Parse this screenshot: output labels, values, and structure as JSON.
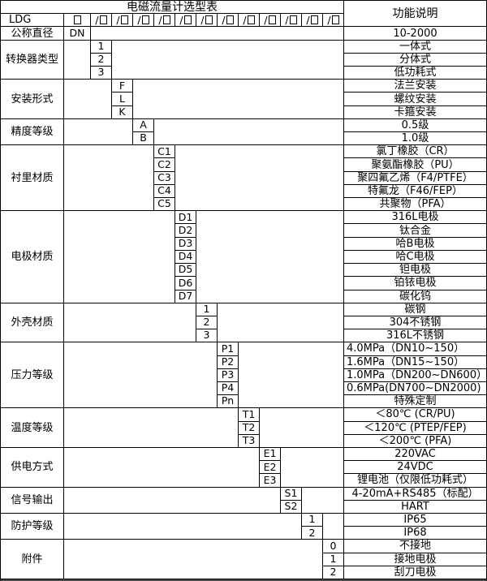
{
  "colors": {
    "border": "#000000",
    "background": "#ffffff",
    "text": "#000000"
  },
  "table": {
    "title": "电磁流量计选型表",
    "function_header": "功能说明",
    "model_row": {
      "prefix": "LDG",
      "segments": [
        "□",
        "/□",
        "/□",
        "/□",
        "/□",
        "/□",
        "/□",
        "/□",
        "/□",
        "/□",
        "/□",
        "/□",
        "/□"
      ]
    },
    "sections": [
      {
        "label": "公称直径",
        "col": 0,
        "rows": [
          {
            "code": "DN",
            "desc": "10-2000"
          }
        ]
      },
      {
        "label": "转换器类型",
        "col": 1,
        "rows": [
          {
            "code": "1",
            "desc": "一体式"
          },
          {
            "code": "2",
            "desc": "分体式"
          },
          {
            "code": "3",
            "desc": "低功耗式"
          }
        ]
      },
      {
        "label": "安装形式",
        "col": 2,
        "rows": [
          {
            "code": "F",
            "desc": "法兰安装"
          },
          {
            "code": "L",
            "desc": "螺纹安装"
          },
          {
            "code": "K",
            "desc": "卡箍安装"
          }
        ]
      },
      {
        "label": "精度等级",
        "col": 3,
        "rows": [
          {
            "code": "A",
            "desc": "0.5级"
          },
          {
            "code": "B",
            "desc": "1.0级"
          }
        ]
      },
      {
        "label": "衬里材质",
        "col": 4,
        "rows": [
          {
            "code": "C1",
            "desc": "氯丁橡胶（CR）"
          },
          {
            "code": "C2",
            "desc": "聚氨酯橡胶（PU）"
          },
          {
            "code": "C3",
            "desc": "聚四氟乙烯（F4/PTFE）"
          },
          {
            "code": "C4",
            "desc": "特氟龙（F46/FEP）"
          },
          {
            "code": "C5",
            "desc": "共聚物（PFA）"
          }
        ]
      },
      {
        "label": "电极材质",
        "col": 5,
        "rows": [
          {
            "code": "D1",
            "desc": "316L电极"
          },
          {
            "code": "D2",
            "desc": "钛合金"
          },
          {
            "code": "D3",
            "desc": "哈B电极"
          },
          {
            "code": "D4",
            "desc": "哈C电极"
          },
          {
            "code": "D5",
            "desc": "钽电极"
          },
          {
            "code": "D6",
            "desc": "铂铱电极"
          },
          {
            "code": "D7",
            "desc": "碳化钨"
          }
        ]
      },
      {
        "label": "外壳材质",
        "col": 6,
        "rows": [
          {
            "code": "1",
            "desc": "碳钢"
          },
          {
            "code": "2",
            "desc": "304不锈钢"
          },
          {
            "code": "3",
            "desc": "316L不锈钢"
          }
        ]
      },
      {
        "label": "压力等级",
        "col": 7,
        "rows": [
          {
            "code": "P1",
            "desc": "4.0MPa（DN10~150）",
            "align": "left"
          },
          {
            "code": "P2",
            "desc": "1.6MPa（DN15~150）",
            "align": "left"
          },
          {
            "code": "P3",
            "desc": "1.0MPa（DN200~DN600）",
            "align": "left"
          },
          {
            "code": "P4",
            "desc": "0.6MPa(DN700~DN2000)",
            "align": "left"
          },
          {
            "code": "Pn",
            "desc": "特殊定制"
          }
        ]
      },
      {
        "label": "温度等级",
        "col": 8,
        "rows": [
          {
            "code": "T1",
            "desc": "＜80℃ (CR/PU)"
          },
          {
            "code": "T2",
            "desc": "＜120℃ (PTEP/FEP)"
          },
          {
            "code": "T3",
            "desc": "＜200℃ (PFA)"
          }
        ]
      },
      {
        "label": "供电方式",
        "col": 9,
        "rows": [
          {
            "code": "E1",
            "desc": "220VAC"
          },
          {
            "code": "E2",
            "desc": "24VDC"
          },
          {
            "code": "E3",
            "desc": "锂电池（仅限低功耗式）"
          }
        ]
      },
      {
        "label": "信号输出",
        "col": 10,
        "rows": [
          {
            "code": "S1",
            "desc": "4-20mA+RS485（标配）"
          },
          {
            "code": "S2",
            "desc": "HART"
          }
        ]
      },
      {
        "label": "防护等级",
        "col": 11,
        "rows": [
          {
            "code": "1",
            "desc": "IP65"
          },
          {
            "code": "2",
            "desc": "IP68"
          }
        ]
      },
      {
        "label": "附件",
        "col": 12,
        "rows": [
          {
            "code": "0",
            "desc": "不接地"
          },
          {
            "code": "1",
            "desc": "接地电极"
          },
          {
            "code": "2",
            "desc": "刮刀电极"
          }
        ]
      }
    ]
  }
}
